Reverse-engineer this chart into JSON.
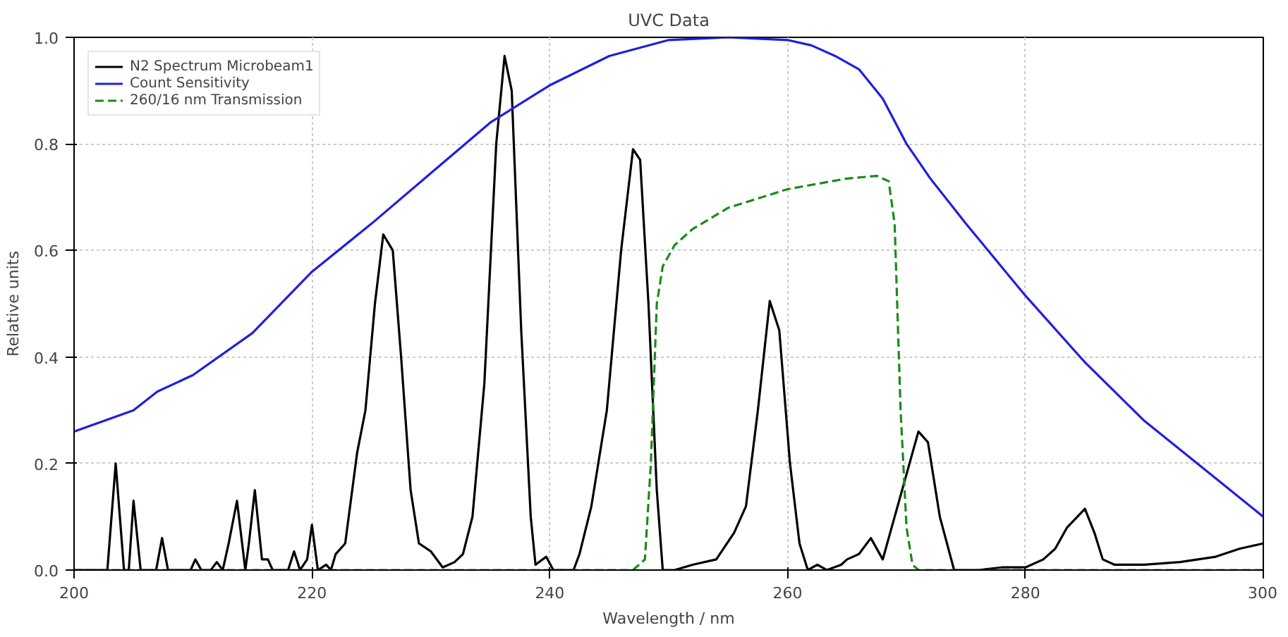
{
  "chart_data": {
    "type": "line",
    "title": "UVC Data",
    "xlabel": "Wavelength / nm",
    "ylabel": "Relative units",
    "xlim": [
      200,
      300
    ],
    "ylim": [
      0,
      1.0
    ],
    "xticks": [
      200,
      220,
      240,
      260,
      280,
      300
    ],
    "yticks": [
      {
        "value": 0,
        "label": "0.0"
      },
      {
        "value": 0.2,
        "label": "0.2"
      },
      {
        "value": 0.4,
        "label": "0.4"
      },
      {
        "value": 0.6,
        "label": "0.6"
      },
      {
        "value": 0.8,
        "label": "0.8"
      },
      {
        "value": 1.0,
        "label": "1.0"
      }
    ],
    "grid": true,
    "legend": "top left",
    "marker": "none",
    "series": [
      {
        "name": "N2 Spectrum Microbeam1",
        "color": "#000000",
        "line_style": "solid",
        "x": [
          200,
          202.8,
          203.5,
          204.2,
          204.6,
          205,
          205.6,
          206.9,
          207.4,
          207.9,
          209.8,
          210.2,
          210.7,
          211.5,
          212,
          212.5,
          213,
          213.7,
          214.4,
          214.7,
          215.2,
          215.8,
          216.3,
          216.7,
          218,
          218.5,
          219,
          219.6,
          220,
          220.5,
          221.2,
          221.6,
          222,
          222.8,
          223.8,
          224.5,
          225.3,
          226,
          226.8,
          227.5,
          228.3,
          229,
          230,
          231,
          232,
          232.7,
          233.5,
          234.5,
          235.5,
          236.2,
          236.8,
          237.6,
          238.4,
          238.8,
          239.7,
          240.3,
          242,
          242.5,
          243.5,
          244.8,
          246,
          247,
          247.6,
          248.3,
          249,
          249.5,
          250.5,
          252,
          254,
          255.5,
          256.5,
          257.5,
          258.5,
          259.3,
          260.2,
          261,
          261.7,
          262.5,
          263.3,
          264.5,
          265,
          266,
          267,
          268,
          269,
          270,
          271,
          271.8,
          272.8,
          274,
          276,
          278,
          280,
          281.5,
          282.5,
          283.5,
          285,
          285.8,
          286.5,
          287.5,
          290,
          293,
          296,
          298,
          300
        ],
        "values": [
          0,
          0,
          0.2,
          0,
          0,
          0.13,
          0,
          0,
          0.06,
          0,
          0,
          0.02,
          0,
          0,
          0.015,
          0,
          0.05,
          0.13,
          0,
          0.05,
          0.15,
          0.02,
          0.02,
          0,
          0,
          0.035,
          0,
          0.02,
          0.085,
          0,
          0.01,
          0,
          0.03,
          0.05,
          0.22,
          0.3,
          0.5,
          0.63,
          0.6,
          0.4,
          0.15,
          0.05,
          0.035,
          0.005,
          0.015,
          0.03,
          0.1,
          0.35,
          0.8,
          0.965,
          0.9,
          0.45,
          0.1,
          0.01,
          0.025,
          0,
          0,
          0.03,
          0.12,
          0.3,
          0.6,
          0.79,
          0.77,
          0.5,
          0.15,
          0,
          0,
          0.01,
          0.02,
          0.07,
          0.12,
          0.3,
          0.505,
          0.45,
          0.2,
          0.05,
          0,
          0.01,
          0,
          0.01,
          0.02,
          0.03,
          0.06,
          0.02,
          0.1,
          0.18,
          0.26,
          0.24,
          0.1,
          0,
          0,
          0.005,
          0.005,
          0.02,
          0.04,
          0.08,
          0.115,
          0.07,
          0.02,
          0.01,
          0.01,
          0.015,
          0.025,
          0.04,
          0.05
        ]
      },
      {
        "name": "Count Sensitivity",
        "color": "#1f1fe0",
        "line_style": "solid",
        "x": [
          200,
          205,
          207,
          210,
          215,
          220,
          225,
          230,
          235,
          240,
          245,
          250,
          255,
          260,
          262,
          264,
          266,
          268,
          270,
          272,
          275,
          280,
          285,
          290,
          295,
          300
        ],
        "values": [
          0.26,
          0.3,
          0.335,
          0.366,
          0.445,
          0.56,
          0.65,
          0.745,
          0.84,
          0.91,
          0.965,
          0.995,
          1.0,
          0.995,
          0.985,
          0.965,
          0.94,
          0.885,
          0.8,
          0.735,
          0.65,
          0.515,
          0.39,
          0.28,
          0.19,
          0.1
        ]
      },
      {
        "name": "260/16 nm Transmission",
        "color": "#1a8c1a",
        "line_style": "dashed",
        "x": [
          200,
          247,
          248,
          248.5,
          249,
          249.5,
          250.5,
          252,
          255,
          260,
          265,
          267.5,
          268.5,
          269,
          269.5,
          270,
          270.5,
          271,
          300
        ],
        "values": [
          0,
          0,
          0.02,
          0.2,
          0.5,
          0.57,
          0.61,
          0.64,
          0.68,
          0.715,
          0.735,
          0.74,
          0.73,
          0.65,
          0.3,
          0.08,
          0.01,
          0,
          0
        ]
      }
    ]
  }
}
